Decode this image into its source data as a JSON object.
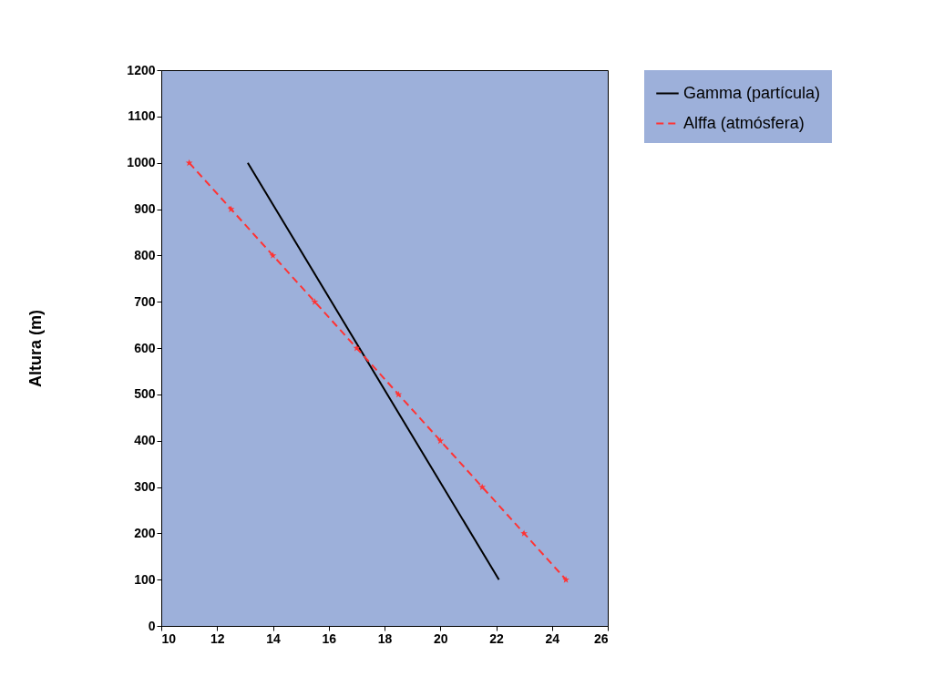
{
  "chart_data": {
    "type": "line",
    "ylabel": "Altura (m)",
    "xlim": [
      10,
      26
    ],
    "xticks": [
      10,
      12,
      14,
      16,
      18,
      20,
      22,
      24,
      26
    ],
    "ylim": [
      0,
      1200
    ],
    "yticks": [
      0,
      100,
      200,
      300,
      400,
      500,
      600,
      700,
      800,
      900,
      1000,
      1100,
      1200
    ],
    "grid": false,
    "legend": "top right",
    "series": [
      {
        "name": "Gamma (partícula)",
        "color": "#000000",
        "line_style": "solid",
        "marker": "none",
        "x": [
          13.1,
          22.1
        ],
        "values": [
          1000,
          100
        ]
      },
      {
        "name": "Alffa (atmósfera)",
        "color": "#ff3333",
        "line_style": "dashed",
        "marker": "star",
        "x": [
          11,
          12.5,
          14,
          15.5,
          17,
          18.5,
          20,
          21.5,
          23,
          24.5
        ],
        "values": [
          1000,
          900,
          800,
          700,
          600,
          500,
          400,
          300,
          200,
          100
        ]
      }
    ]
  }
}
